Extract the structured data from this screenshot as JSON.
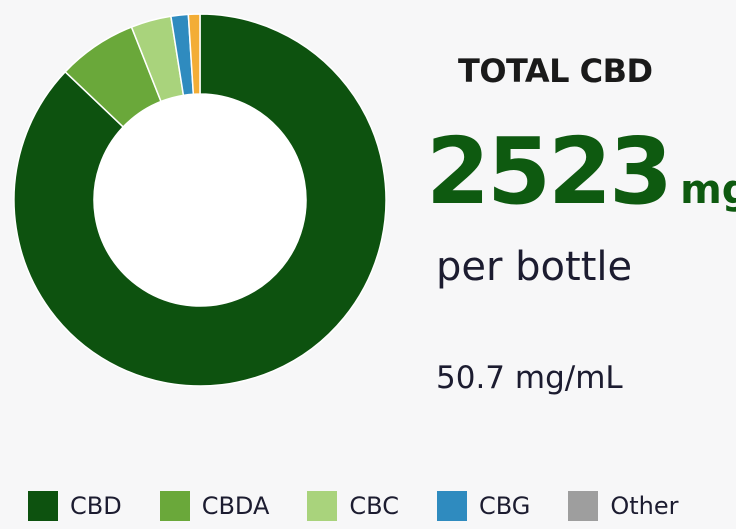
{
  "summary": {
    "title": "TOTAL CBD",
    "total_value": "2523",
    "total_unit": "mg",
    "per_label": "per bottle",
    "concentration": "50.7 mg/mL"
  },
  "chart_data": {
    "type": "pie",
    "style": "donut",
    "categories": [
      "CBD",
      "CBDA",
      "CBC",
      "CBG",
      "Other"
    ],
    "values": [
      87.1,
      6.9,
      3.5,
      1.5,
      1.0
    ],
    "colors": [
      "#0d520f",
      "#6aa83a",
      "#a9d37c",
      "#2f8bbf",
      "#9e9e9e"
    ],
    "slice_colors": [
      "#0d520f",
      "#6aa83a",
      "#a9d37c",
      "#2f8bbf",
      "#f3ad36"
    ],
    "legend": [
      "CBD",
      "CBDA",
      "CBC",
      "CBG",
      "Other"
    ],
    "legend_position": "bottom"
  }
}
